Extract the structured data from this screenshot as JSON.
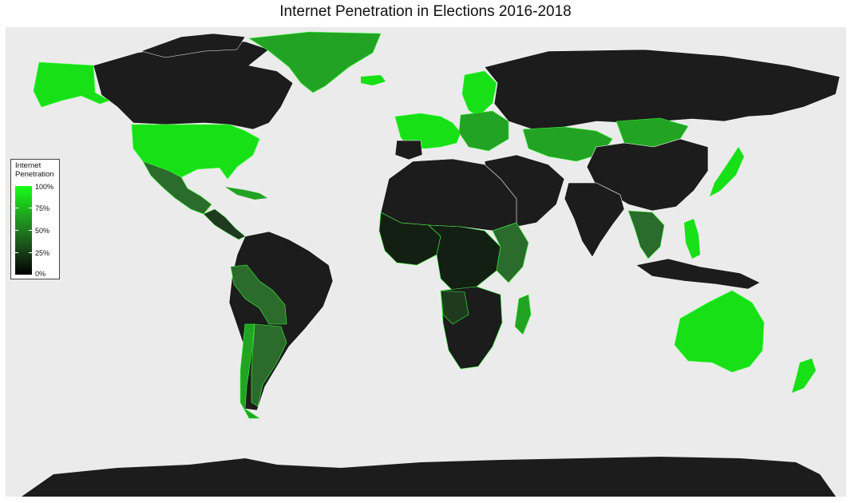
{
  "title": "Internet Penetration in Elections 2016-2018",
  "legend": {
    "title_line1": "Internet",
    "title_line2": "Penetration",
    "labels": [
      "100%",
      "75%",
      "50%",
      "25%",
      "0%"
    ],
    "values": [
      1.0,
      0.75,
      0.5,
      0.25,
      0.0
    ]
  },
  "colors": {
    "ocean": "#ebebeb",
    "no_data": "#1c1c1c",
    "high": "#17e017",
    "mid_high": "#23a323",
    "mid": "#2b6b2b",
    "low": "#1f3a1f",
    "very_low": "#141f14",
    "border_highlight": "#3cff3c"
  }
}
